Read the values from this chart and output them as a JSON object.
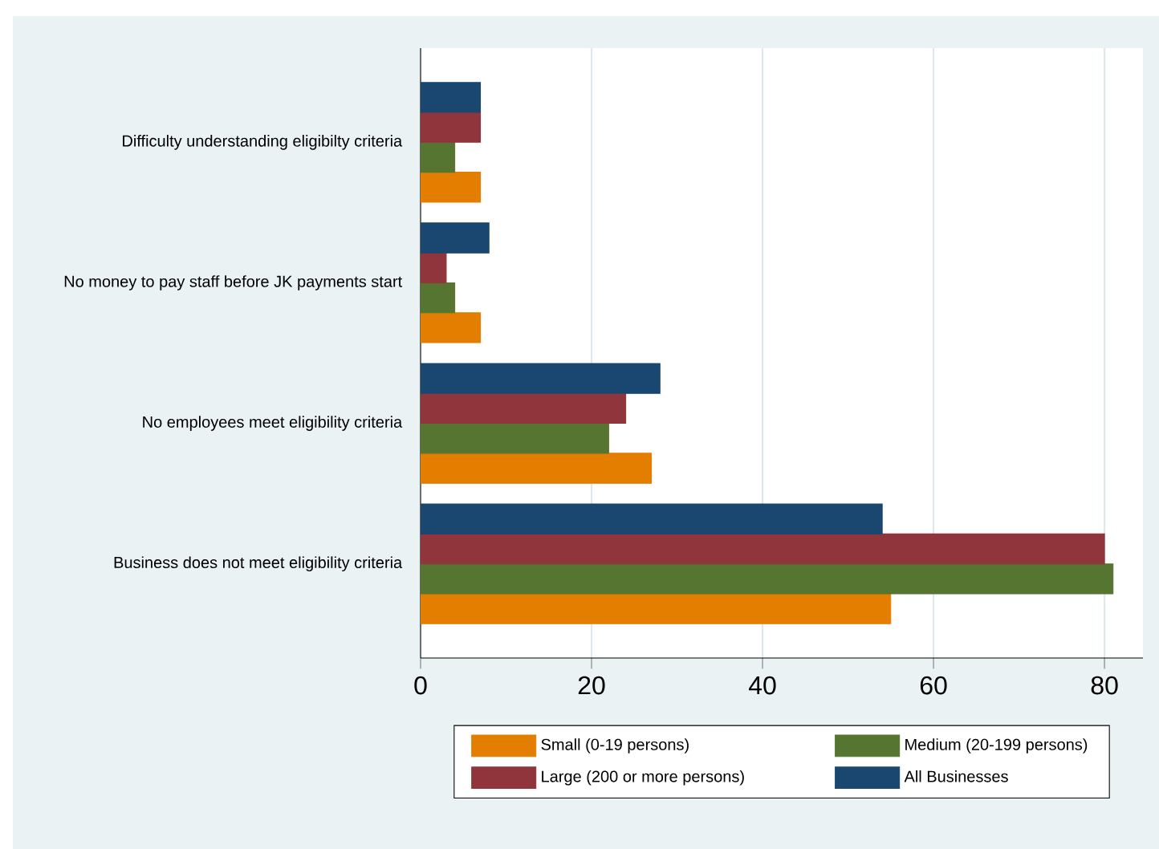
{
  "chart_data": {
    "type": "bar",
    "orientation": "horizontal",
    "categories": [
      "Difficulty understanding eligibilty criteria",
      "No money to pay staff before JK payments start",
      "No employees meet eligibility criteria",
      "Business does not meet eligibility criteria"
    ],
    "series": [
      {
        "name": "Small (0-19 persons)",
        "color": "#e37e00",
        "values": [
          7,
          7,
          27,
          55
        ]
      },
      {
        "name": "Medium (20-199 persons)",
        "color": "#557530",
        "values": [
          4,
          4,
          22,
          81
        ]
      },
      {
        "name": "Large (200 or more persons)",
        "color": "#90353b",
        "values": [
          7,
          3,
          24,
          80
        ]
      },
      {
        "name": "All Businesses",
        "color": "#1a476f",
        "values": [
          7,
          8,
          28,
          54
        ]
      }
    ],
    "xlim": [
      0,
      84.5
    ],
    "xticks": [
      0,
      20,
      40,
      60,
      80
    ],
    "grid": "x",
    "legend": "bottom"
  }
}
